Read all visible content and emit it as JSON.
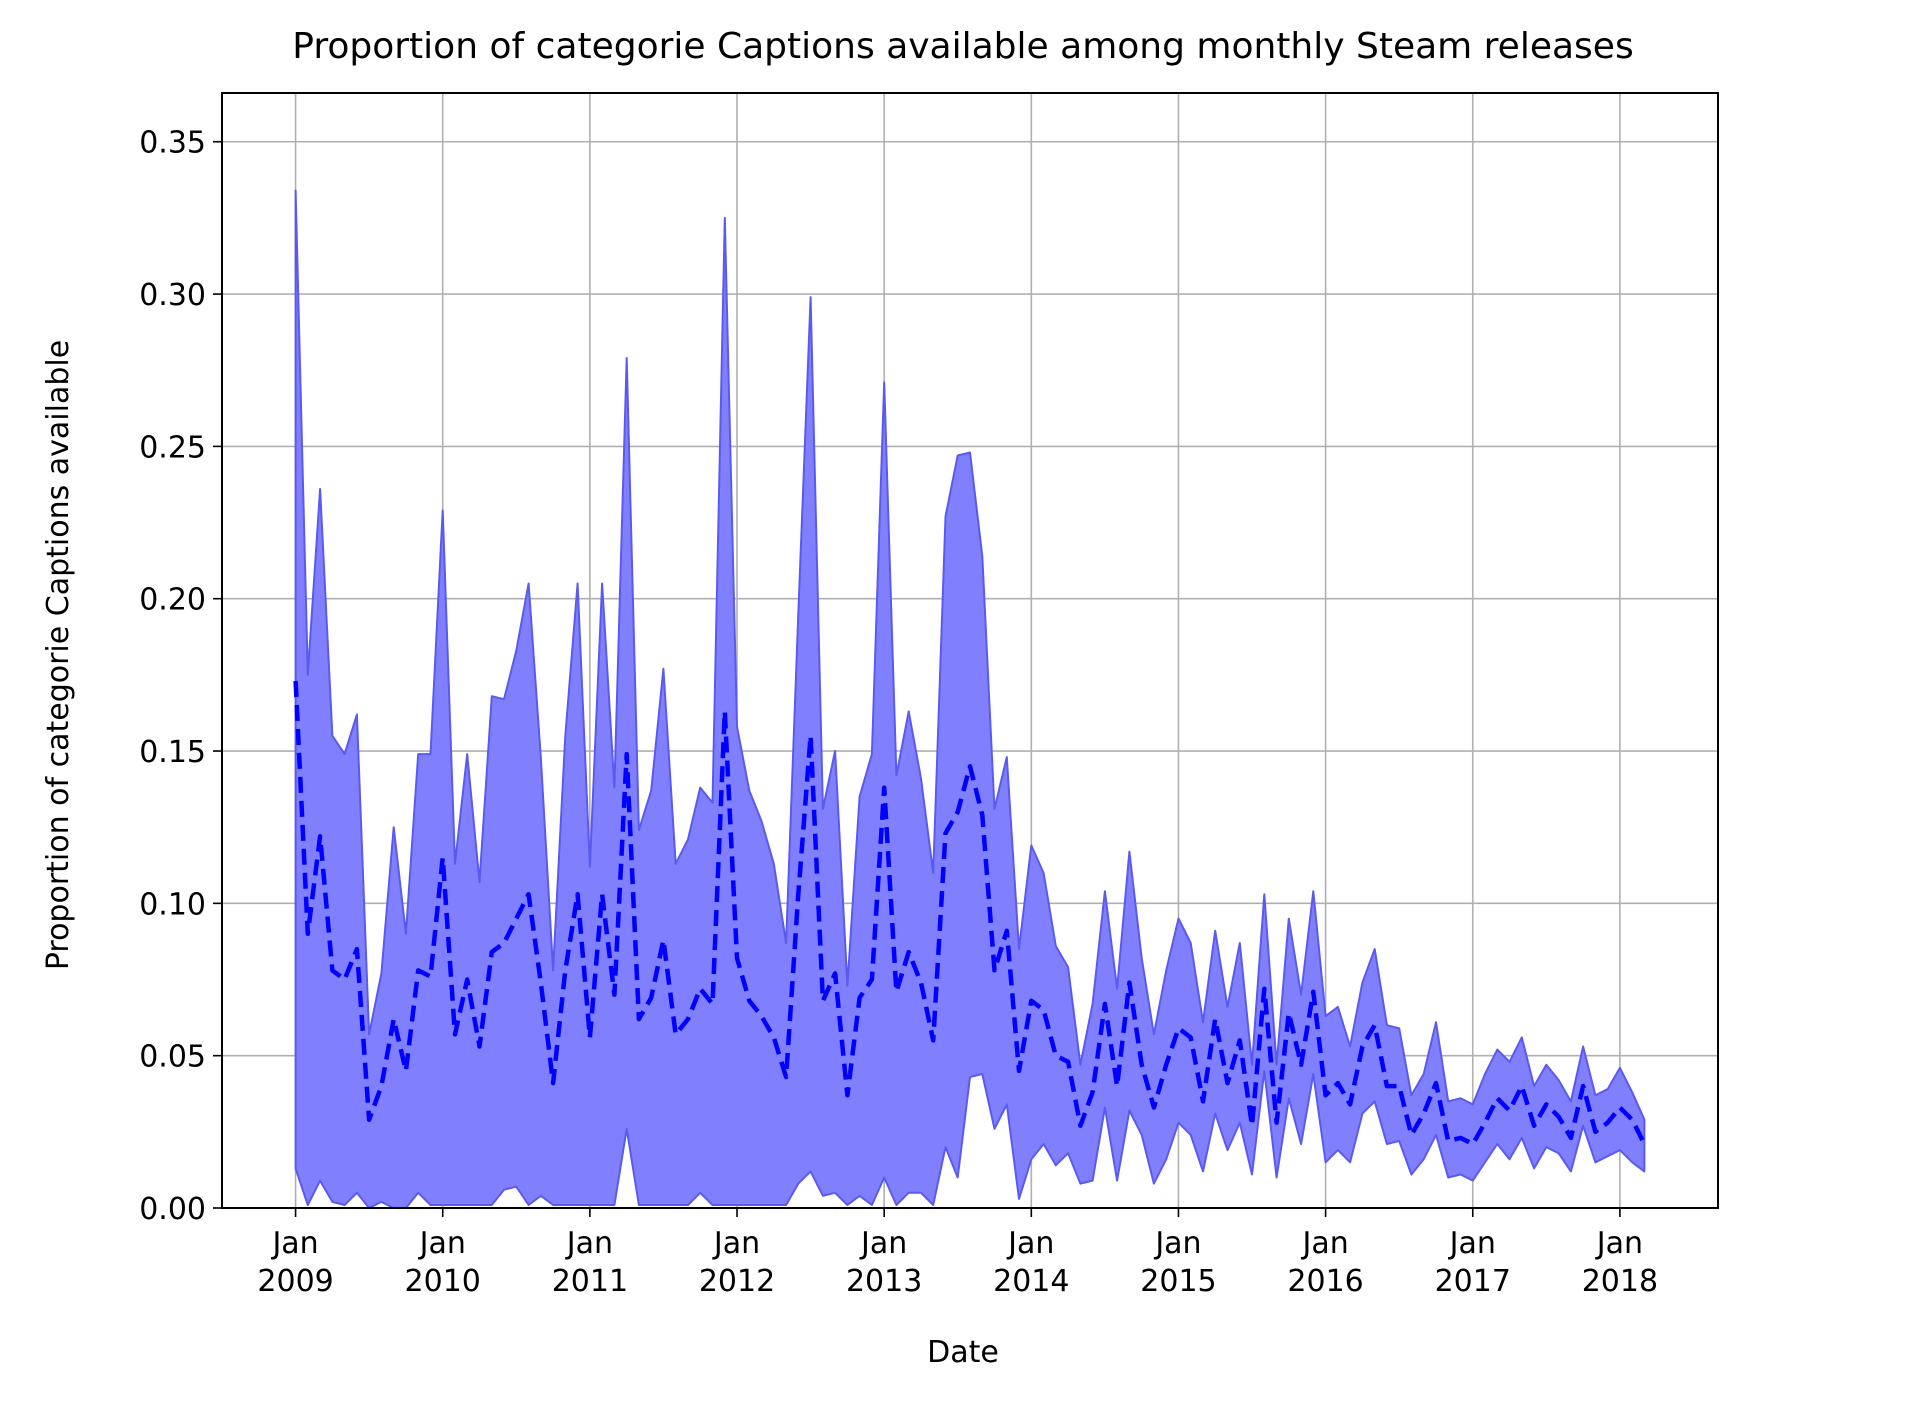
{
  "chart_data": {
    "type": "area",
    "title": "Proportion of categorie Captions available among monthly Steam releases",
    "xlabel": "Date",
    "ylabel": "Proportion of categorie Captions available",
    "xlim": [
      "2008-07",
      "2018-09"
    ],
    "ylim": [
      0,
      0.366
    ],
    "x_ticks": [
      {
        "date": "2009-01",
        "label_line1": "Jan",
        "label_line2": "2009"
      },
      {
        "date": "2010-01",
        "label_line1": "Jan",
        "label_line2": "2010"
      },
      {
        "date": "2011-01",
        "label_line1": "Jan",
        "label_line2": "2011"
      },
      {
        "date": "2012-01",
        "label_line1": "Jan",
        "label_line2": "2012"
      },
      {
        "date": "2013-01",
        "label_line1": "Jan",
        "label_line2": "2013"
      },
      {
        "date": "2014-01",
        "label_line1": "Jan",
        "label_line2": "2014"
      },
      {
        "date": "2015-01",
        "label_line1": "Jan",
        "label_line2": "2015"
      },
      {
        "date": "2016-01",
        "label_line1": "Jan",
        "label_line2": "2016"
      },
      {
        "date": "2017-01",
        "label_line1": "Jan",
        "label_line2": "2017"
      },
      {
        "date": "2018-01",
        "label_line1": "Jan",
        "label_line2": "2018"
      }
    ],
    "y_ticks": [
      {
        "value": 0.0,
        "label": "0.00"
      },
      {
        "value": 0.05,
        "label": "0.05"
      },
      {
        "value": 0.1,
        "label": "0.10"
      },
      {
        "value": 0.15,
        "label": "0.15"
      },
      {
        "value": 0.2,
        "label": "0.20"
      },
      {
        "value": 0.25,
        "label": "0.25"
      },
      {
        "value": 0.3,
        "label": "0.30"
      },
      {
        "value": 0.35,
        "label": "0.35"
      }
    ],
    "grid": true,
    "colors": {
      "band_fill": "#8080ff",
      "band_edge": "#5a5af0",
      "line": "#0000ff",
      "grid": "#b0b0b0",
      "axes": "#000000"
    },
    "series": [
      {
        "style": "dashed-line",
        "x": [
          "2009-01",
          "2009-02",
          "2009-03",
          "2009-04",
          "2009-05",
          "2009-06",
          "2009-07",
          "2009-08",
          "2009-09",
          "2009-10",
          "2009-11",
          "2009-12",
          "2010-01",
          "2010-02",
          "2010-03",
          "2010-04",
          "2010-05",
          "2010-06",
          "2010-07",
          "2010-08",
          "2010-09",
          "2010-10",
          "2010-11",
          "2010-12",
          "2011-01",
          "2011-02",
          "2011-03",
          "2011-04",
          "2011-05",
          "2011-06",
          "2011-07",
          "2011-08",
          "2011-09",
          "2011-10",
          "2011-11",
          "2011-12",
          "2012-01",
          "2012-02",
          "2012-03",
          "2012-04",
          "2012-05",
          "2012-06",
          "2012-07",
          "2012-08",
          "2012-09",
          "2012-10",
          "2012-11",
          "2012-12",
          "2013-01",
          "2013-02",
          "2013-03",
          "2013-04",
          "2013-05",
          "2013-06",
          "2013-07",
          "2013-08",
          "2013-09",
          "2013-10",
          "2013-11",
          "2013-12",
          "2014-01",
          "2014-02",
          "2014-03",
          "2014-04",
          "2014-05",
          "2014-06",
          "2014-07",
          "2014-08",
          "2014-09",
          "2014-10",
          "2014-11",
          "2014-12",
          "2015-01",
          "2015-02",
          "2015-03",
          "2015-04",
          "2015-05",
          "2015-06",
          "2015-07",
          "2015-08",
          "2015-09",
          "2015-10",
          "2015-11",
          "2015-12",
          "2016-01",
          "2016-02",
          "2016-03",
          "2016-04",
          "2016-05",
          "2016-06",
          "2016-07",
          "2016-08",
          "2016-09",
          "2016-10",
          "2016-11",
          "2016-12",
          "2017-01",
          "2017-02",
          "2017-03",
          "2017-04",
          "2017-05",
          "2017-06",
          "2017-07",
          "2017-08",
          "2017-09",
          "2017-10",
          "2017-11",
          "2017-12",
          "2018-01",
          "2018-02",
          "2018-03"
        ],
        "y": [
          0.173,
          0.09,
          0.122,
          0.078,
          0.075,
          0.085,
          0.029,
          0.04,
          0.062,
          0.045,
          0.078,
          0.076,
          0.115,
          0.057,
          0.075,
          0.053,
          0.084,
          0.087,
          0.095,
          0.103,
          0.074,
          0.041,
          0.078,
          0.103,
          0.056,
          0.103,
          0.07,
          0.149,
          0.062,
          0.069,
          0.088,
          0.057,
          0.062,
          0.072,
          0.067,
          0.163,
          0.082,
          0.068,
          0.063,
          0.056,
          0.043,
          0.103,
          0.155,
          0.068,
          0.077,
          0.037,
          0.069,
          0.075,
          0.138,
          0.071,
          0.084,
          0.074,
          0.055,
          0.123,
          0.13,
          0.145,
          0.129,
          0.078,
          0.091,
          0.045,
          0.068,
          0.065,
          0.05,
          0.048,
          0.027,
          0.038,
          0.067,
          0.04,
          0.074,
          0.047,
          0.033,
          0.047,
          0.059,
          0.056,
          0.035,
          0.062,
          0.041,
          0.055,
          0.027,
          0.072,
          0.028,
          0.064,
          0.047,
          0.071,
          0.037,
          0.041,
          0.034,
          0.053,
          0.06,
          0.04,
          0.04,
          0.024,
          0.031,
          0.041,
          0.022,
          0.023,
          0.021,
          0.028,
          0.036,
          0.032,
          0.04,
          0.027,
          0.034,
          0.03,
          0.023,
          0.04,
          0.025,
          0.028,
          0.033,
          0.029,
          0.021
        ]
      },
      {
        "style": "band-upper",
        "y": [
          0.334,
          0.175,
          0.236,
          0.155,
          0.149,
          0.162,
          0.057,
          0.077,
          0.125,
          0.09,
          0.149,
          0.149,
          0.229,
          0.113,
          0.149,
          0.107,
          0.168,
          0.167,
          0.183,
          0.205,
          0.148,
          0.078,
          0.155,
          0.205,
          0.112,
          0.205,
          0.138,
          0.279,
          0.124,
          0.137,
          0.177,
          0.113,
          0.121,
          0.138,
          0.133,
          0.325,
          0.158,
          0.137,
          0.127,
          0.113,
          0.087,
          0.195,
          0.299,
          0.131,
          0.15,
          0.073,
          0.135,
          0.149,
          0.271,
          0.142,
          0.163,
          0.141,
          0.11,
          0.227,
          0.247,
          0.248,
          0.214,
          0.131,
          0.148,
          0.085,
          0.119,
          0.11,
          0.086,
          0.079,
          0.047,
          0.067,
          0.104,
          0.072,
          0.117,
          0.082,
          0.057,
          0.078,
          0.095,
          0.087,
          0.061,
          0.091,
          0.066,
          0.087,
          0.047,
          0.103,
          0.047,
          0.095,
          0.07,
          0.104,
          0.063,
          0.066,
          0.053,
          0.074,
          0.085,
          0.06,
          0.059,
          0.037,
          0.044,
          0.061,
          0.035,
          0.036,
          0.034,
          0.044,
          0.052,
          0.048,
          0.056,
          0.04,
          0.047,
          0.042,
          0.035,
          0.053,
          0.037,
          0.039,
          0.046,
          0.038,
          0.029
        ]
      },
      {
        "style": "band-lower",
        "y": [
          0.013,
          0.001,
          0.009,
          0.002,
          0.001,
          0.005,
          0.0,
          0.002,
          0.0,
          0.0,
          0.005,
          0.001,
          0.001,
          0.001,
          0.001,
          0.001,
          0.001,
          0.006,
          0.007,
          0.001,
          0.004,
          0.001,
          0.001,
          0.001,
          0.001,
          0.001,
          0.001,
          0.026,
          0.001,
          0.001,
          0.001,
          0.001,
          0.001,
          0.005,
          0.001,
          0.001,
          0.001,
          0.001,
          0.001,
          0.001,
          0.001,
          0.008,
          0.012,
          0.004,
          0.005,
          0.001,
          0.004,
          0.001,
          0.01,
          0.001,
          0.005,
          0.005,
          0.001,
          0.02,
          0.01,
          0.043,
          0.044,
          0.026,
          0.034,
          0.003,
          0.016,
          0.021,
          0.014,
          0.018,
          0.008,
          0.009,
          0.033,
          0.009,
          0.032,
          0.024,
          0.008,
          0.016,
          0.028,
          0.024,
          0.012,
          0.031,
          0.019,
          0.028,
          0.011,
          0.045,
          0.01,
          0.036,
          0.021,
          0.044,
          0.015,
          0.019,
          0.015,
          0.031,
          0.035,
          0.021,
          0.022,
          0.011,
          0.016,
          0.024,
          0.01,
          0.011,
          0.009,
          0.015,
          0.021,
          0.016,
          0.023,
          0.013,
          0.02,
          0.018,
          0.012,
          0.027,
          0.015,
          0.017,
          0.019,
          0.015,
          0.012
        ]
      }
    ]
  }
}
